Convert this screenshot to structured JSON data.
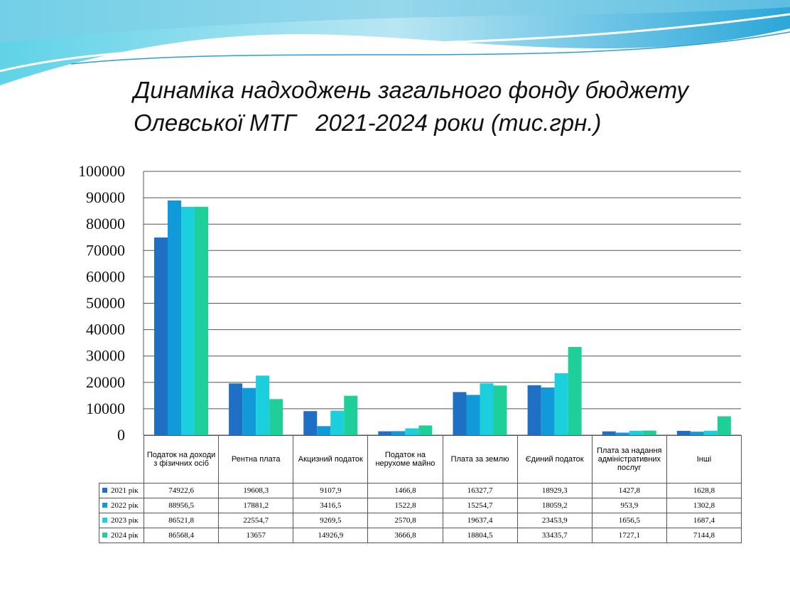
{
  "chart_data": {
    "type": "bar",
    "title": [
      "Динаміка надходжень загального фонду бюджету",
      "Олевської МТГ   2021-2024 роки (тис.грн.)"
    ],
    "categories": [
      "Податок на доходи з фізичних осіб",
      "Рентна плата",
      "Акцизний податок",
      "Податок на нерухоме майно",
      "Плата за землю",
      "Єдиний податок",
      "Плата за надання адміністративних послуг",
      "Інші"
    ],
    "series": [
      {
        "name": "2021 рік",
        "color": "#1f6fc5",
        "values": [
          74922.6,
          19608.3,
          9107.9,
          1466.8,
          16327.7,
          18929.3,
          1427.8,
          1628.8
        ],
        "value_labels": [
          "74922,6",
          "19608,3",
          "9107,9",
          "1466,8",
          "16327,7",
          "18929,3",
          "1427,8",
          "1628,8"
        ]
      },
      {
        "name": "2022 рік",
        "color": "#119ad9",
        "values": [
          88956.5,
          17881.2,
          3416.5,
          1522.8,
          15254.7,
          18059.2,
          953.9,
          1302.8
        ],
        "value_labels": [
          "88956,5",
          "17881,2",
          "3416,5",
          "1522,8",
          "15254,7",
          "18059,2",
          "953,9",
          "1302,8"
        ]
      },
      {
        "name": "2023 рік",
        "color": "#1ccfdc",
        "values": [
          86521.8,
          22554.7,
          9269.5,
          2570.8,
          19637.4,
          23453.9,
          1656.5,
          1687.4
        ],
        "value_labels": [
          "86521,8",
          "22554,7",
          "9269,5",
          "2570,8",
          "19637,4",
          "23453,9",
          "1656,5",
          "1687,4"
        ]
      },
      {
        "name": "2024 рік",
        "color": "#1ecf9a",
        "values": [
          86568.4,
          13657,
          14926.9,
          3666.8,
          18804.5,
          33435.7,
          1727.1,
          7144.8
        ],
        "value_labels": [
          "86568,4",
          "13657",
          "14926,9",
          "3666,8",
          "18804,5",
          "33435,7",
          "1727,1",
          "7144,8"
        ]
      }
    ],
    "ylim": [
      0,
      100000
    ],
    "yticks": [
      0,
      10000,
      20000,
      30000,
      40000,
      50000,
      60000,
      70000,
      80000,
      90000,
      100000
    ],
    "grid": true
  }
}
